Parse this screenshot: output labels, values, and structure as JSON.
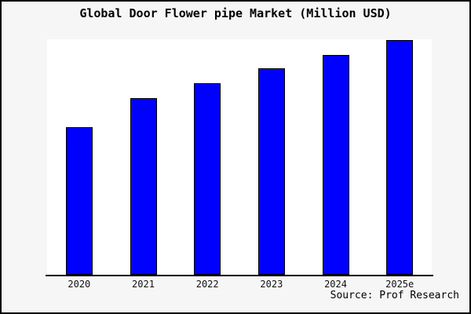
{
  "chart_data": {
    "type": "bar",
    "title": "Global Door Flower pipe Market (Million USD)",
    "categories": [
      "2020",
      "2021",
      "2022",
      "2023",
      "2024",
      "2025e"
    ],
    "values": [
      62.9,
      75.1,
      81.6,
      88.0,
      93.8,
      100.0
    ],
    "values_note": "y-axis has no scale or tick labels; values are bar heights as percent of the tallest (2025e) bar",
    "xlabel": "",
    "ylabel": "",
    "ylim": [
      0,
      100
    ],
    "grid": false,
    "legend": null
  },
  "source_note": "Source: Prof Research",
  "colors": {
    "bar_fill": "#0000ff",
    "bar_border": "#000000",
    "plot_background": "#ffffff",
    "figure_background": "#f6f6f6",
    "frame_border": "#000000",
    "axis_line": "#000000",
    "title_text": "#000000",
    "tick_text": "#111111"
  }
}
